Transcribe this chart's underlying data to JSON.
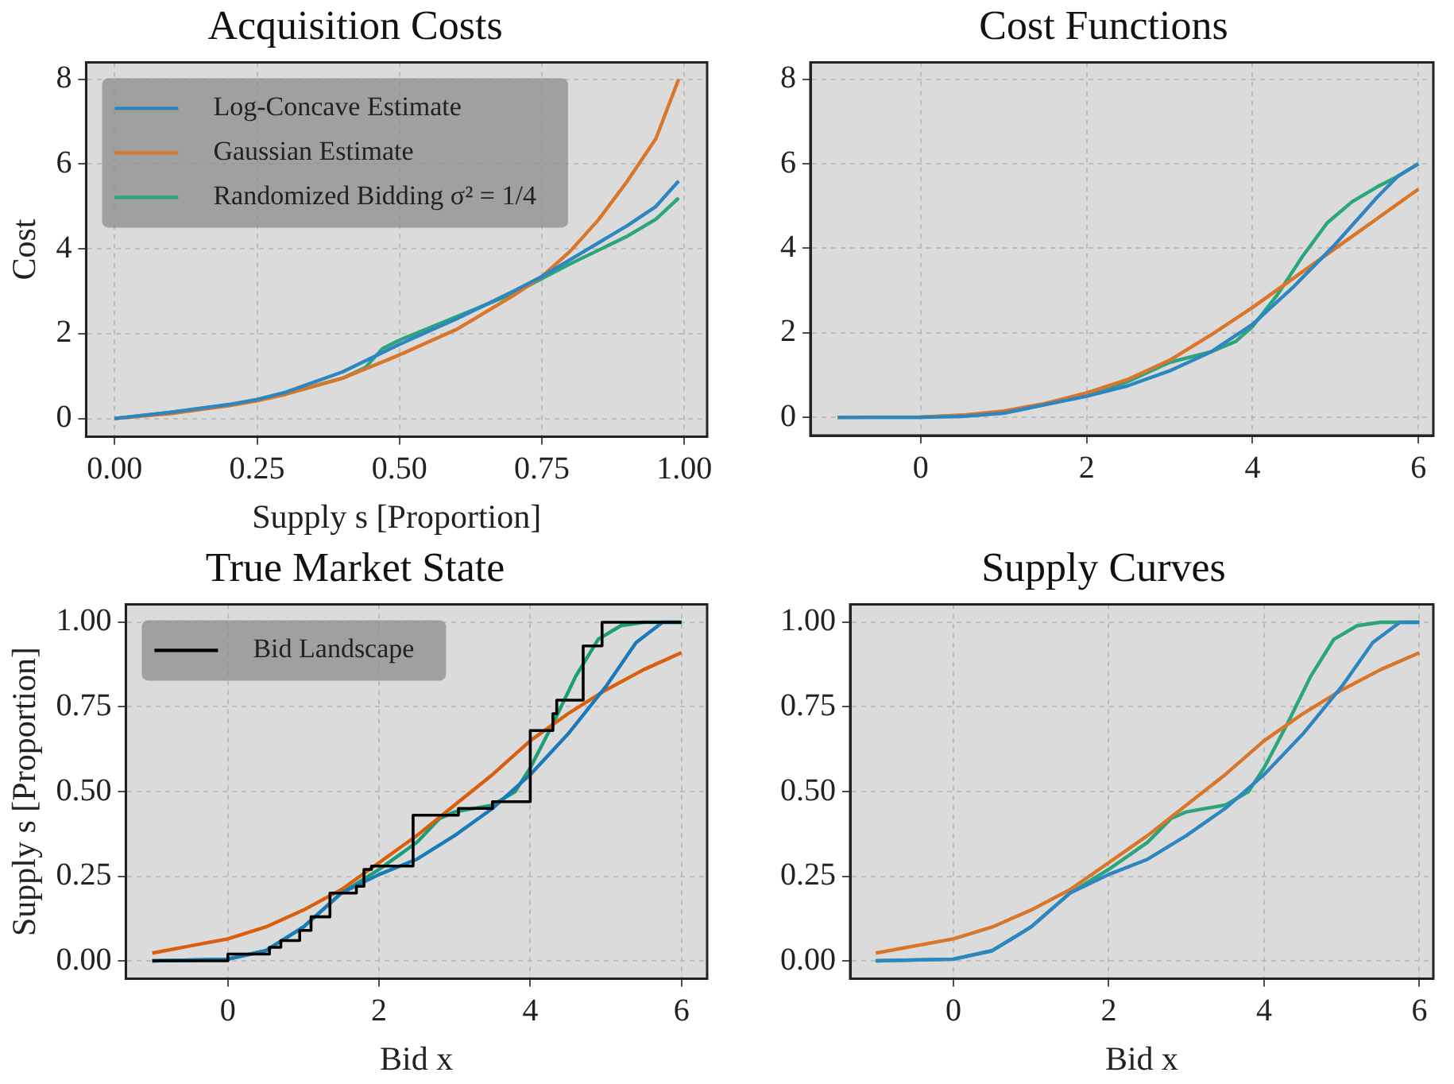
{
  "chart_data": [
    {
      "type": "line",
      "title": "Acquisition Costs",
      "xlabel": "Supply s [Proportion]",
      "ylabel": "Cost",
      "legend": "top left",
      "grid": true,
      "xlim": [
        -0.05,
        1.04
      ],
      "xticks": [
        {
          "value": 0,
          "label": "0.00"
        },
        {
          "value": 0.25,
          "label": "0.25"
        },
        {
          "value": 0.5,
          "label": "0.50"
        },
        {
          "value": 0.75,
          "label": "0.75"
        },
        {
          "value": 1,
          "label": "1.00"
        }
      ],
      "ylim": [
        -0.43,
        8.4
      ],
      "yticks": [
        0,
        2,
        4,
        6,
        8
      ],
      "series": [
        {
          "name": "Log-Concave Estimate",
          "color": "#2e86c1",
          "x": [
            0,
            0.1,
            0.2,
            0.25,
            0.3,
            0.4,
            0.5,
            0.6,
            0.7,
            0.75,
            0.8,
            0.9,
            0.95,
            0.99
          ],
          "values": [
            0,
            0.15,
            0.33,
            0.45,
            0.62,
            1.1,
            1.75,
            2.35,
            3.0,
            3.35,
            3.75,
            4.55,
            5.0,
            5.6
          ]
        },
        {
          "name": "Gaussian Estimate",
          "color": "#d9762a",
          "x": [
            0,
            0.1,
            0.2,
            0.25,
            0.3,
            0.4,
            0.5,
            0.6,
            0.7,
            0.75,
            0.8,
            0.85,
            0.9,
            0.95,
            0.99
          ],
          "values": [
            0,
            0.12,
            0.3,
            0.42,
            0.57,
            0.95,
            1.5,
            2.1,
            2.9,
            3.35,
            3.95,
            4.7,
            5.6,
            6.6,
            8.0
          ]
        },
        {
          "name": "Randomized Bidding σ² = 1/4",
          "color": "#2aa57e",
          "x": [
            0,
            0.1,
            0.2,
            0.25,
            0.3,
            0.4,
            0.44,
            0.47,
            0.5,
            0.6,
            0.7,
            0.75,
            0.8,
            0.9,
            0.95,
            0.99
          ],
          "values": [
            0,
            0.15,
            0.32,
            0.43,
            0.58,
            0.95,
            1.2,
            1.65,
            1.85,
            2.4,
            2.95,
            3.3,
            3.65,
            4.3,
            4.7,
            5.2
          ]
        }
      ]
    },
    {
      "type": "line",
      "title": "Cost Functions",
      "grid": true,
      "xlim": [
        -1.33,
        6.18
      ],
      "xticks": [
        0,
        2,
        4,
        6
      ],
      "ylim": [
        -0.43,
        8.4
      ],
      "yticks": [
        0,
        2,
        4,
        6,
        8
      ],
      "series": [
        {
          "color": "#2e86c1",
          "x": [
            -1,
            0,
            0.5,
            1,
            1.5,
            2,
            2.5,
            3,
            3.5,
            4,
            4.5,
            5,
            5.5,
            5.75,
            6
          ],
          "values": [
            0,
            0,
            0.02,
            0.1,
            0.3,
            0.5,
            0.75,
            1.1,
            1.55,
            2.2,
            3.1,
            4.1,
            5.2,
            5.7,
            6.0
          ]
        },
        {
          "color": "#d9762a",
          "x": [
            -1,
            0,
            0.5,
            1,
            1.5,
            2,
            2.5,
            3,
            3.5,
            4,
            4.5,
            5,
            5.5,
            6
          ],
          "values": [
            0,
            0.01,
            0.05,
            0.15,
            0.33,
            0.58,
            0.9,
            1.35,
            1.95,
            2.6,
            3.3,
            4.0,
            4.7,
            5.4
          ]
        },
        {
          "color": "#2aa57e",
          "x": [
            -1,
            0,
            1,
            1.5,
            2,
            2.5,
            3,
            3.5,
            3.8,
            4,
            4.3,
            4.6,
            4.9,
            5.2,
            5.5,
            5.75,
            6
          ],
          "values": [
            0,
            0,
            0.1,
            0.3,
            0.52,
            0.85,
            1.3,
            1.55,
            1.8,
            2.15,
            2.9,
            3.8,
            4.6,
            5.1,
            5.45,
            5.7,
            6.0
          ]
        }
      ]
    },
    {
      "type": "line",
      "title": "True Market State",
      "xlabel": "Bid x",
      "ylabel": "Supply s [Proportion]",
      "legend": "top left",
      "grid": true,
      "xlim": [
        -1.35,
        6.34
      ],
      "xticks": [
        0,
        2,
        4,
        6
      ],
      "ylim": [
        -0.053,
        1.053
      ],
      "yticks": [
        {
          "value": 0,
          "label": "0.00"
        },
        {
          "value": 0.25,
          "label": "0.25"
        },
        {
          "value": 0.5,
          "label": "0.50"
        },
        {
          "value": 0.75,
          "label": "0.75"
        },
        {
          "value": 1,
          "label": "1.00"
        }
      ],
      "series": [
        {
          "color": "#1a7ab8",
          "x": [
            -1,
            0,
            0.5,
            1,
            1.5,
            2,
            2.5,
            3,
            3.5,
            4,
            4.5,
            5,
            5.4,
            5.75,
            6
          ],
          "values": [
            0,
            0.005,
            0.03,
            0.1,
            0.2,
            0.255,
            0.3,
            0.37,
            0.45,
            0.55,
            0.67,
            0.81,
            0.94,
            1.0,
            1.0
          ]
        },
        {
          "color": "#d95f0e",
          "x": [
            -1,
            0,
            0.5,
            1,
            1.5,
            2,
            2.5,
            3,
            3.5,
            4,
            4.5,
            5,
            5.5,
            6
          ],
          "values": [
            0.023,
            0.065,
            0.1,
            0.15,
            0.21,
            0.29,
            0.37,
            0.46,
            0.55,
            0.65,
            0.73,
            0.8,
            0.86,
            0.91
          ]
        },
        {
          "color": "#1b9e77",
          "x": [
            -1,
            0,
            0.5,
            1,
            1.5,
            2,
            2.5,
            2.8,
            3,
            3.5,
            3.8,
            4,
            4.3,
            4.6,
            4.9,
            5.2,
            5.5,
            6
          ],
          "values": [
            0,
            0.005,
            0.03,
            0.1,
            0.2,
            0.27,
            0.35,
            0.42,
            0.44,
            0.46,
            0.5,
            0.57,
            0.7,
            0.84,
            0.95,
            0.99,
            1.0,
            1.0
          ]
        },
        {
          "name": "Bid Landscape",
          "type": "step",
          "color": "#000000",
          "x": [
            -1,
            0,
            0.55,
            0.7,
            0.95,
            1.1,
            1.35,
            1.7,
            1.8,
            1.9,
            2.45,
            3.05,
            3.5,
            4.0,
            4.3,
            4.35,
            4.7,
            4.95,
            6
          ],
          "values": [
            0,
            0.02,
            0.04,
            0.06,
            0.09,
            0.13,
            0.2,
            0.22,
            0.27,
            0.28,
            0.43,
            0.45,
            0.47,
            0.68,
            0.73,
            0.77,
            0.93,
            1.0,
            1.0
          ]
        }
      ]
    },
    {
      "type": "line",
      "title": "Supply Curves",
      "xlabel": "Bid x",
      "grid": true,
      "xlim": [
        -1.33,
        6.18
      ],
      "xticks": [
        0,
        2,
        4,
        6
      ],
      "ylim": [
        -0.053,
        1.053
      ],
      "yticks": [
        {
          "value": 0,
          "label": "0.00"
        },
        {
          "value": 0.25,
          "label": "0.25"
        },
        {
          "value": 0.5,
          "label": "0.50"
        },
        {
          "value": 0.75,
          "label": "0.75"
        },
        {
          "value": 1,
          "label": "1.00"
        }
      ],
      "series": [
        {
          "color": "#2e86c1",
          "x": [
            -1,
            0,
            0.5,
            1,
            1.5,
            2,
            2.5,
            3,
            3.5,
            4,
            4.5,
            5,
            5.4,
            5.75,
            6
          ],
          "values": [
            0,
            0.005,
            0.03,
            0.1,
            0.2,
            0.255,
            0.3,
            0.37,
            0.45,
            0.55,
            0.67,
            0.81,
            0.94,
            1.0,
            1.0
          ]
        },
        {
          "color": "#d9762a",
          "x": [
            -1,
            0,
            0.5,
            1,
            1.5,
            2,
            2.5,
            3,
            3.5,
            4,
            4.5,
            5,
            5.5,
            6
          ],
          "values": [
            0.023,
            0.065,
            0.1,
            0.15,
            0.21,
            0.29,
            0.37,
            0.46,
            0.55,
            0.65,
            0.73,
            0.8,
            0.86,
            0.91
          ]
        },
        {
          "color": "#2aa57e",
          "x": [
            -1,
            0,
            0.5,
            1,
            1.5,
            2,
            2.5,
            2.8,
            3,
            3.5,
            3.8,
            4,
            4.3,
            4.6,
            4.9,
            5.2,
            5.5,
            6
          ],
          "values": [
            0,
            0.005,
            0.03,
            0.1,
            0.2,
            0.27,
            0.35,
            0.42,
            0.44,
            0.46,
            0.5,
            0.57,
            0.7,
            0.84,
            0.95,
            0.99,
            1.0,
            1.0
          ]
        }
      ]
    }
  ]
}
